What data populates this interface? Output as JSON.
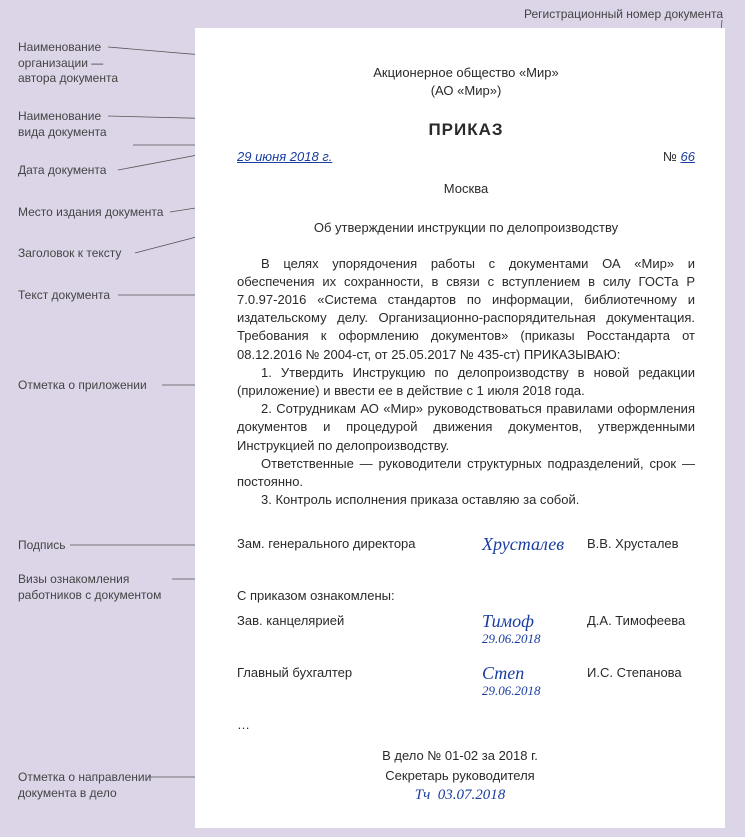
{
  "annotations": {
    "reg_num": "Регистрационный  номер документа",
    "org": "Наименование\nорганизации —\nавтора документа",
    "doc_type": "Наименование\nвида документа",
    "date": "Дата документа",
    "place": "Место издания документа",
    "heading": "Заголовок к тексту",
    "text": "Текст документа",
    "attachment": "Отметка о приложении",
    "signature": "Подпись",
    "visas": "Визы ознакомления\nработников с документом",
    "filing": "Отметка о направлении\nдокумента в дело"
  },
  "document": {
    "org_full": "Акционерное общество «Мир»",
    "org_short": "(АО «Мир»)",
    "title": "ПРИКАЗ",
    "date": "29 июня 2018 г.",
    "reg_prefix": "№",
    "reg_number": "66",
    "city": "Москва",
    "subject": "Об утверждении инструкции по делопроизводству",
    "body": [
      "В целях упорядочения работы с документами ОА «Мир» и обеспечения их сохранности, в связи с вступлением в силу ГОСТа Р 7.0.97-2016 «Система стандартов по информации, библиотечному и издательскому делу. Организационно-распорядительная документация. Требования к оформлению документов» (приказы Росстандарта от 08.12.2016 № 2004-ст, от 25.05.2017 № 435-ст) ПРИКАЗЫВАЮ:",
      "1. Утвердить Инструкцию по делопроизводству в новой редакции (приложение) и ввести ее в действие с 1 июля 2018 года.",
      "2. Сотрудникам АО «Мир» руководствоваться правилами оформления документов и процедурой движения документов, утвержденными Инструкцией по делопроизводству.",
      "Ответственные — руководители структурных подразделений, срок — постоянно.",
      "3. Контроль исполнения приказа оставляю за собой."
    ],
    "signer": {
      "role": "Зам. генерального директора",
      "sign": "Хрусталев",
      "name": "В.В. Хрусталев"
    },
    "visa_intro": "С приказом ознакомлены:",
    "visas": [
      {
        "role": "Зав. канцелярией",
        "sign": "Тимоф",
        "date": "29.06.2018",
        "name": "Д.А. Тимофеева"
      },
      {
        "role": "Главный бухгалтер",
        "sign": "Степ",
        "date": "29.06.2018",
        "name": "И.С. Степанова"
      }
    ],
    "ellipsis": "…",
    "filing": {
      "line1": "В дело № 01-02 за 2018 г.",
      "line2": "Секретарь руководителя",
      "sig_prefix": "Тч",
      "date": "03.07.2018"
    }
  },
  "colors": {
    "background": "#dcd5e8",
    "paper": "#ffffff",
    "ink": "#2a2a2a",
    "handwritten": "#1a3da0",
    "leader": "#555555"
  }
}
